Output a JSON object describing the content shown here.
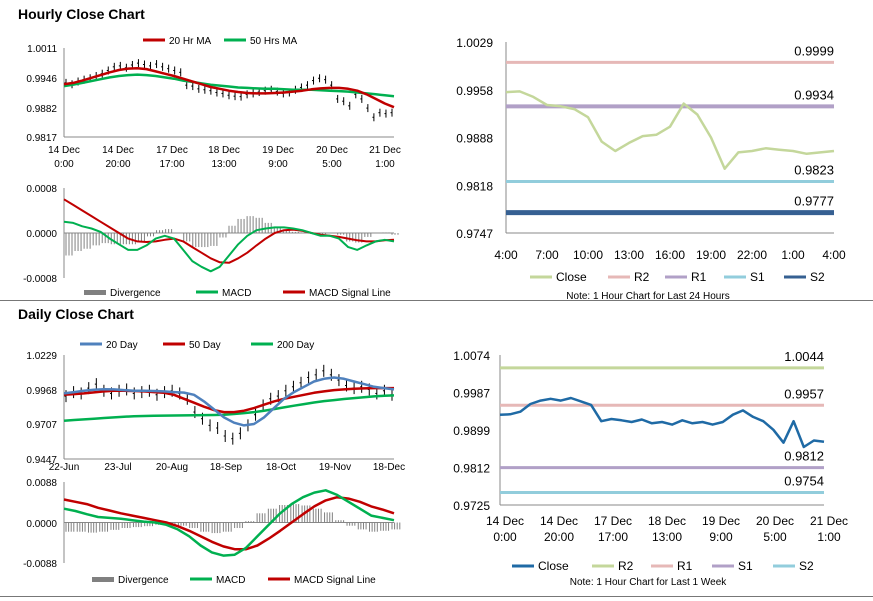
{
  "sections": {
    "hourly_title": "Hourly Close Chart",
    "daily_title": "Daily Close Chart"
  },
  "colors": {
    "ma_red": "#c00000",
    "ma_green": "#00b050",
    "ma_blue": "#4f81bd",
    "price_black": "#000000",
    "close_olive": "#c4d79b",
    "close_blue": "#1f6aa5",
    "r2": "#e6b8b7",
    "r1": "#b1a0c7",
    "s1": "#92cddc",
    "s2": "#366092",
    "daily_r2": "#c4d79b",
    "daily_r1": "#e6b8b7",
    "daily_s1": "#b1a0c7",
    "daily_s2": "#92cddc",
    "divergence": "#808080"
  },
  "chart_data": [
    {
      "id": "hourly_price",
      "type": "line",
      "title": "",
      "legend": [
        "20 Hr MA",
        "50 Hrs MA"
      ],
      "yticks": [
        "1.0011",
        "0.9946",
        "0.9882",
        "0.9817"
      ],
      "ylim": [
        0.9817,
        1.0011
      ],
      "xticks": [
        [
          "14 Dec",
          "0:00"
        ],
        [
          "14 Dec",
          "20:00"
        ],
        [
          "17 Dec",
          "17:00"
        ],
        [
          "18 Dec",
          "13:00"
        ],
        [
          "19 Dec",
          "9:00"
        ],
        [
          "20 Dec",
          "5:00"
        ],
        [
          "21 Dec",
          "1:00"
        ]
      ],
      "price": [
        0.9935,
        0.9932,
        0.9938,
        0.9942,
        0.9945,
        0.995,
        0.9955,
        0.9962,
        0.997,
        0.9972,
        0.9968,
        0.9974,
        0.9978,
        0.9975,
        0.9972,
        0.9976,
        0.997,
        0.9966,
        0.9962,
        0.9958,
        0.993,
        0.9928,
        0.9922,
        0.992,
        0.9918,
        0.9914,
        0.9912,
        0.9908,
        0.9906,
        0.9905,
        0.991,
        0.9912,
        0.9915,
        0.9918,
        0.992,
        0.9916,
        0.9912,
        0.9914,
        0.992,
        0.9925,
        0.993,
        0.994,
        0.9945,
        0.9942,
        0.993,
        0.99,
        0.9895,
        0.9885,
        0.991,
        0.99,
        0.988,
        0.986,
        0.987,
        0.9868,
        0.987
      ],
      "ma20": [
        0.9932,
        0.9935,
        0.994,
        0.9946,
        0.9952,
        0.9958,
        0.9963,
        0.9966,
        0.9967,
        0.9965,
        0.996,
        0.9955,
        0.995,
        0.9944,
        0.9938,
        0.9932,
        0.9926,
        0.9922,
        0.9918,
        0.9915,
        0.9913,
        0.9912,
        0.9912,
        0.9913,
        0.9914,
        0.9916,
        0.9918,
        0.9921,
        0.9923,
        0.9924,
        0.9924,
        0.9922,
        0.9918,
        0.991,
        0.99,
        0.989,
        0.9882
      ],
      "ma50": [
        0.9928,
        0.9931,
        0.9935,
        0.9939,
        0.9943,
        0.9947,
        0.995,
        0.9952,
        0.9953,
        0.9952,
        0.995,
        0.9947,
        0.9944,
        0.994,
        0.9937,
        0.9934,
        0.9931,
        0.9929,
        0.9927,
        0.9925,
        0.9924,
        0.9923,
        0.9922,
        0.9922,
        0.9921,
        0.992,
        0.992,
        0.992,
        0.9919,
        0.9918,
        0.9917,
        0.9916,
        0.9914,
        0.9912,
        0.991,
        0.9908,
        0.9906
      ]
    },
    {
      "id": "hourly_macd",
      "type": "line",
      "legend": [
        "Divergence",
        "MACD",
        "MACD Signal Line"
      ],
      "yticks": [
        "0.0008",
        "0.0000",
        "-0.0008"
      ],
      "ylim": [
        -0.0008,
        0.0008
      ],
      "macd": [
        0.0002,
        0.00018,
        0.00012,
        8e-05,
        2e-05,
        -0.0001,
        -0.0002,
        -0.0003,
        -0.0003,
        -0.00022,
        -0.0001,
        -5e-05,
        -0.0001,
        -0.0003,
        -0.0005,
        -0.0006,
        -0.00068,
        -0.0006,
        -0.0004,
        -0.0002,
        -5e-05,
        5e-05,
        8e-05,
        0.0001,
        0.0001,
        8e-05,
        5e-05,
        0.0,
        -5e-05,
        -5e-05,
        -0.0001,
        -0.00025,
        -0.0003,
        -0.00022,
        -0.00015,
        -0.00012,
        -0.00015
      ],
      "signal": [
        0.0006,
        0.0005,
        0.0004,
        0.0003,
        0.0002,
        0.0001,
        0.0,
        -0.0001,
        -0.00015,
        -0.00016,
        -0.00015,
        -0.00012,
        -0.0001,
        -0.00015,
        -0.00025,
        -0.00035,
        -0.00045,
        -0.00052,
        -0.00053,
        -0.00045,
        -0.00035,
        -0.00022,
        -0.0001,
        0.0,
        5e-05,
        6e-05,
        4e-05,
        0.0,
        -3e-05,
        -5e-05,
        -7e-05,
        -0.0001,
        -0.00013,
        -0.00015,
        -0.00015,
        -0.00013,
        -0.00012
      ]
    },
    {
      "id": "hourly_levels",
      "type": "line",
      "title": "",
      "yticks": [
        "1.0029",
        "0.9958",
        "0.9888",
        "0.9818",
        "0.9747"
      ],
      "ylim": [
        0.9747,
        1.0029
      ],
      "xticks": [
        "4:00",
        "7:00",
        "10:00",
        "13:00",
        "16:00",
        "19:00",
        "22:00",
        "1:00",
        "4:00"
      ],
      "close": [
        0.9955,
        0.9956,
        0.9948,
        0.9936,
        0.9934,
        0.993,
        0.9918,
        0.9882,
        0.9868,
        0.988,
        0.989,
        0.9892,
        0.9904,
        0.9938,
        0.9922,
        0.9888,
        0.9842,
        0.9866,
        0.9868,
        0.9872,
        0.987,
        0.9868,
        0.9864,
        0.9866,
        0.9868
      ],
      "levels": [
        {
          "name": "R2",
          "value": 0.9999,
          "label": "0.9999"
        },
        {
          "name": "R1",
          "value": 0.9934,
          "label": "0.9934"
        },
        {
          "name": "S1",
          "value": 0.9823,
          "label": "0.9823"
        },
        {
          "name": "S2",
          "value": 0.9777,
          "label": "0.9777"
        }
      ],
      "legend": [
        "Close",
        "R2",
        "R1",
        "S1",
        "S2"
      ],
      "note": "Note: 1 Hour Chart for Last 24 Hours"
    },
    {
      "id": "daily_price",
      "type": "line",
      "legend": [
        "20 Day",
        "50 Day",
        "200 Day"
      ],
      "yticks": [
        "1.0229",
        "0.9968",
        "0.9707",
        "0.9447"
      ],
      "ylim": [
        0.9447,
        1.0229
      ],
      "xticks": [
        "22-Jun",
        "23-Jul",
        "20-Aug",
        "18-Sep",
        "18-Oct",
        "19-Nov",
        "18-Dec"
      ],
      "price": [
        0.992,
        0.995,
        0.994,
        0.998,
        1.001,
        0.996,
        0.994,
        0.996,
        0.997,
        0.994,
        0.995,
        0.996,
        0.993,
        0.995,
        0.996,
        0.994,
        0.99,
        0.98,
        0.975,
        0.97,
        0.968,
        0.962,
        0.96,
        0.964,
        0.97,
        0.978,
        0.985,
        0.99,
        0.992,
        0.996,
        0.999,
        1.002,
        1.006,
        1.008,
        1.011,
        1.008,
        1.004,
        1.0,
        0.998,
        0.999,
        0.997,
        0.994,
        0.996,
        0.993
      ],
      "ma20": [
        0.994,
        0.995,
        0.996,
        0.9968,
        0.9972,
        0.997,
        0.9965,
        0.996,
        0.996,
        0.9958,
        0.9955,
        0.995,
        0.9946,
        0.993,
        0.988,
        0.982,
        0.976,
        0.972,
        0.97,
        0.971,
        0.976,
        0.983,
        0.99,
        0.995,
        0.999,
        1.003,
        1.005,
        1.006,
        1.005,
        1.003,
        1.001,
        0.999,
        0.998,
        0.997
      ],
      "ma50": [
        0.993,
        0.9935,
        0.994,
        0.9948,
        0.9955,
        0.996,
        0.996,
        0.9958,
        0.9955,
        0.995,
        0.9945,
        0.993,
        0.99,
        0.987,
        0.984,
        0.9815,
        0.98,
        0.98,
        0.981,
        0.983,
        0.9855,
        0.988,
        0.99,
        0.9915,
        0.993,
        0.9945,
        0.9955,
        0.9965,
        0.997,
        0.9975,
        0.9978,
        0.998,
        0.998,
        0.998
      ],
      "ma200": [
        0.9735,
        0.974,
        0.9745,
        0.975,
        0.9755,
        0.976,
        0.9765,
        0.9768,
        0.977,
        0.9772,
        0.9773,
        0.9774,
        0.9775,
        0.9776,
        0.9777,
        0.9778,
        0.978,
        0.9785,
        0.9792,
        0.98,
        0.981,
        0.9822,
        0.9835,
        0.9848,
        0.986,
        0.9872,
        0.9882,
        0.989,
        0.9898,
        0.9905,
        0.9912,
        0.9918,
        0.9922,
        0.9925
      ]
    },
    {
      "id": "daily_macd",
      "type": "line",
      "legend": [
        "Divergence",
        "MACD",
        "MACD Signal Line"
      ],
      "yticks": [
        "0.0088",
        "0.0000",
        "-0.0088"
      ],
      "ylim": [
        -0.0088,
        0.0088
      ],
      "macd": [
        0.003,
        0.0025,
        0.0018,
        0.0012,
        0.001,
        0.0008,
        0.0005,
        0.0002,
        0.0,
        -0.0005,
        -0.0015,
        -0.003,
        -0.005,
        -0.0065,
        -0.0072,
        -0.007,
        -0.0055,
        -0.003,
        -0.0005,
        0.002,
        0.004,
        0.0055,
        0.0065,
        0.007,
        0.006,
        0.0045,
        0.003,
        0.0015,
        0.001,
        0.0005
      ],
      "signal": [
        0.005,
        0.0045,
        0.004,
        0.0032,
        0.0026,
        0.002,
        0.0015,
        0.001,
        0.0005,
        0.0,
        -0.0008,
        -0.0018,
        -0.003,
        -0.0042,
        -0.0052,
        -0.0058,
        -0.0058,
        -0.005,
        -0.0035,
        -0.0018,
        0.0,
        0.0018,
        0.0035,
        0.0048,
        0.0055,
        0.0052,
        0.0045,
        0.0035,
        0.0028,
        0.002
      ]
    },
    {
      "id": "daily_levels",
      "type": "line",
      "yticks": [
        "1.0074",
        "0.9987",
        "0.9899",
        "0.9812",
        "0.9725"
      ],
      "ylim": [
        0.9725,
        1.0074
      ],
      "xticks": [
        [
          "14 Dec",
          "0:00"
        ],
        [
          "14 Dec",
          "20:00"
        ],
        [
          "17 Dec",
          "17:00"
        ],
        [
          "18 Dec",
          "13:00"
        ],
        [
          "19 Dec",
          "9:00"
        ],
        [
          "20 Dec",
          "5:00"
        ],
        [
          "21 Dec",
          "1:00"
        ]
      ],
      "close": [
        0.9935,
        0.9936,
        0.9942,
        0.996,
        0.9968,
        0.9972,
        0.9968,
        0.9974,
        0.9966,
        0.9958,
        0.992,
        0.9925,
        0.9922,
        0.9918,
        0.9924,
        0.9915,
        0.9918,
        0.9912,
        0.9922,
        0.9915,
        0.9918,
        0.9912,
        0.9918,
        0.9935,
        0.9945,
        0.993,
        0.992,
        0.99,
        0.987,
        0.992,
        0.986,
        0.9875,
        0.9872
      ],
      "levels": [
        {
          "name": "R2",
          "value": 1.0044,
          "label": "1.0044"
        },
        {
          "name": "R1",
          "value": 0.9957,
          "label": "0.9957"
        },
        {
          "name": "S1",
          "value": 0.9812,
          "label": "0.9812"
        },
        {
          "name": "S2",
          "value": 0.9754,
          "label": "0.9754"
        }
      ],
      "legend": [
        "Close",
        "R2",
        "R1",
        "S1",
        "S2"
      ],
      "note": "Note: 1 Hour Chart for Last 1 Week"
    }
  ]
}
